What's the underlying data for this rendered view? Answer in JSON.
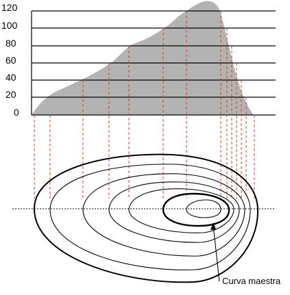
{
  "axis": {
    "ticks": [
      "0",
      "20",
      "40",
      "60",
      "80",
      "100",
      "120"
    ]
  },
  "label": {
    "callout": "Curva maestra"
  },
  "colors": {
    "profile_fill": "#b3b3b3",
    "projection_lines": "#d9431e",
    "ink": "#000000"
  }
}
